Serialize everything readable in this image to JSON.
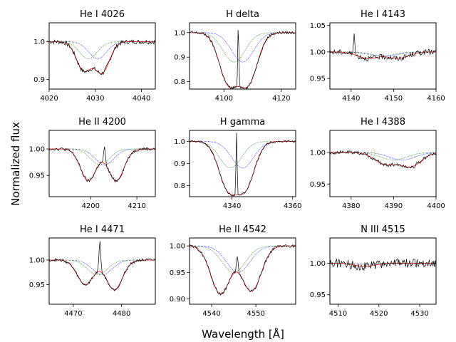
{
  "figure": {
    "xlabel": "Wavelength [Å]",
    "ylabel": "Normalized flux"
  },
  "legend_colors": {
    "observed": "#000000",
    "model": "#ff0000",
    "component_1": "#0000ff",
    "component_2": "#008000"
  },
  "chart_data": [
    {
      "type": "line",
      "title": "He I 4026",
      "xlim": [
        4020,
        4043
      ],
      "ylim": [
        0.875,
        1.05
      ],
      "xticks": [
        4020,
        4030,
        4040
      ],
      "yticks": [
        0.9,
        1.0
      ],
      "ytick_labels": [
        "0.9",
        "1.0"
      ],
      "lines": [
        {
          "depth": 0.075,
          "center": 4027.5,
          "width": 1.6
        },
        {
          "depth": 0.08,
          "center": 4031.5,
          "width": 1.6
        }
      ],
      "shift": 3.0,
      "comp_depth": 0.045,
      "noise": 0.006,
      "spikes": []
    },
    {
      "type": "line",
      "title": "H delta",
      "xlim": [
        4088,
        4125
      ],
      "ylim": [
        0.77,
        1.04
      ],
      "xticks": [
        4100,
        4120
      ],
      "yticks": [
        0.8,
        0.9,
        1.0
      ],
      "ytick_labels": [
        "0.8",
        "0.9",
        "1.0"
      ],
      "lines": [
        {
          "depth": 0.2,
          "center": 4101.5,
          "width": 3.2
        },
        {
          "depth": 0.2,
          "center": 4108.5,
          "width": 3.2
        }
      ],
      "shift": 5.0,
      "comp_depth": 0.12,
      "noise": 0.006,
      "spikes": [
        {
          "x": 4105.0,
          "h": 0.26
        }
      ]
    },
    {
      "type": "line",
      "title": "He I 4143",
      "xlim": [
        4135,
        4160
      ],
      "ylim": [
        0.93,
        1.055
      ],
      "xticks": [
        4140,
        4150,
        4160
      ],
      "yticks": [
        0.95,
        1.0,
        1.05
      ],
      "ytick_labels": [
        "0.95",
        "1.00",
        "1.05"
      ],
      "lines": [
        {
          "depth": 0.012,
          "center": 4144,
          "width": 2.5
        },
        {
          "depth": 0.012,
          "center": 4151,
          "width": 2.5
        }
      ],
      "shift": 4.0,
      "comp_depth": 0.008,
      "noise": 0.005,
      "spikes": [
        {
          "x": 4140.7,
          "h": 0.035
        }
      ]
    },
    {
      "type": "line",
      "title": "He II 4200",
      "xlim": [
        4191,
        4214
      ],
      "ylim": [
        0.91,
        1.035
      ],
      "xticks": [
        4200,
        4210
      ],
      "yticks": [
        0.95,
        1.0
      ],
      "ytick_labels": [
        "0.95",
        "1.00"
      ],
      "lines": [
        {
          "depth": 0.06,
          "center": 4199.5,
          "width": 1.7
        },
        {
          "depth": 0.06,
          "center": 4205.5,
          "width": 1.7
        }
      ],
      "shift": 3.5,
      "comp_depth": 0.03,
      "noise": 0.003,
      "spikes": [
        {
          "x": 4203.0,
          "h": 0.03
        }
      ]
    },
    {
      "type": "line",
      "title": "H gamma",
      "xlim": [
        4326,
        4361
      ],
      "ylim": [
        0.75,
        1.05
      ],
      "xticks": [
        4340,
        4360
      ],
      "yticks": [
        0.8,
        0.9,
        1.0
      ],
      "ytick_labels": [
        "0.8",
        "0.9",
        "1.0"
      ],
      "lines": [
        {
          "depth": 0.2,
          "center": 4338.5,
          "width": 3.0
        },
        {
          "depth": 0.2,
          "center": 4344.5,
          "width": 3.0
        }
      ],
      "shift": 5.0,
      "comp_depth": 0.12,
      "noise": 0.005,
      "spikes": [
        {
          "x": 4341.5,
          "h": 0.28
        }
      ]
    },
    {
      "type": "line",
      "title": "He I 4388",
      "xlim": [
        4375,
        4400
      ],
      "ylim": [
        0.93,
        1.035
      ],
      "xticks": [
        4380,
        4390,
        4400
      ],
      "yticks": [
        0.95,
        1.0
      ],
      "ytick_labels": [
        "0.95",
        "1.00"
      ],
      "lines": [
        {
          "depth": 0.018,
          "center": 4388,
          "width": 2.5
        },
        {
          "depth": 0.022,
          "center": 4394,
          "width": 2.5
        }
      ],
      "shift": 4.0,
      "comp_depth": 0.012,
      "noise": 0.003,
      "spikes": []
    },
    {
      "type": "line",
      "title": "He I 4471",
      "xlim": [
        4465,
        4487
      ],
      "ylim": [
        0.91,
        1.045
      ],
      "xticks": [
        4470,
        4480
      ],
      "yticks": [
        0.95,
        1.0
      ],
      "ytick_labels": [
        "0.95",
        "1.00"
      ],
      "lines": [
        {
          "depth": 0.05,
          "center": 4472.5,
          "width": 1.7
        },
        {
          "depth": 0.06,
          "center": 4478.5,
          "width": 1.7
        }
      ],
      "shift": 3.5,
      "comp_depth": 0.03,
      "noise": 0.003,
      "spikes": [
        {
          "x": 4475.5,
          "h": 0.06
        }
      ]
    },
    {
      "type": "line",
      "title": "He II 4542",
      "xlim": [
        4535,
        4559
      ],
      "ylim": [
        0.89,
        1.015
      ],
      "xticks": [
        4540,
        4550
      ],
      "yticks": [
        0.9,
        0.95,
        1.0
      ],
      "ytick_labels": [
        "0.90",
        "0.95",
        "1.00"
      ],
      "lines": [
        {
          "depth": 0.09,
          "center": 4542,
          "width": 2.2
        },
        {
          "depth": 0.085,
          "center": 4549,
          "width": 2.2
        }
      ],
      "shift": 4.0,
      "comp_depth": 0.05,
      "noise": 0.003,
      "spikes": [
        {
          "x": 4545.8,
          "h": 0.03
        }
      ]
    },
    {
      "type": "line",
      "title": "N III 4515",
      "xlim": [
        4508,
        4534
      ],
      "ylim": [
        0.935,
        1.04
      ],
      "xticks": [
        4510,
        4520,
        4530
      ],
      "yticks": [
        0.95,
        1.0
      ],
      "ytick_labels": [
        "0.95",
        "1.00"
      ],
      "lines": [
        {
          "depth": 0.003,
          "center": 4515,
          "width": 2.0
        },
        {
          "depth": 0.003,
          "center": 4518,
          "width": 2.0
        }
      ],
      "shift": 3.0,
      "comp_depth": 0.002,
      "noise": 0.007,
      "spikes": []
    }
  ]
}
